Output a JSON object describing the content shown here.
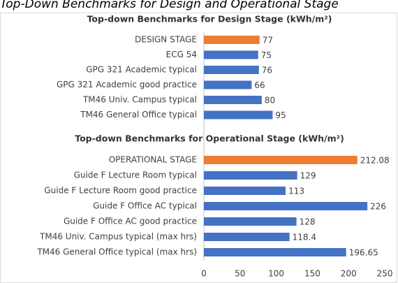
{
  "title": "Top-Down Benchmarks for Design and Operational Stage",
  "chart_data": [
    {
      "type": "barh",
      "title": "Top-down Benchmarks for Design Stage (kWh/m²)",
      "categories": [
        "DESIGN STAGE",
        "ECG 54",
        "GPG 321 Academic typical",
        "GPG 321 Academic good practice",
        "TM46 Univ. Campus typical",
        "TM46 General Office typical"
      ],
      "values": [
        77,
        75,
        76,
        66,
        80,
        95
      ],
      "colors": [
        "#ed7d31",
        "#4472c4",
        "#4472c4",
        "#4472c4",
        "#4472c4",
        "#4472c4"
      ],
      "xlim": [
        0,
        250
      ]
    },
    {
      "type": "barh",
      "title": "Top-down Benchmarks for Operational Stage (kWh/m²)",
      "categories": [
        "OPERATIONAL STAGE",
        "Guide F Lecture Room typical",
        "Guide F Lecture Room good practice",
        "Guide F Office AC typical",
        "Guide F Office AC good practice",
        "TM46 Univ. Campus typical (max hrs)",
        "TM46 General Office typical (max hrs)"
      ],
      "values": [
        212.08,
        129,
        113,
        226,
        128,
        118.4,
        196.65
      ],
      "colors": [
        "#ed7d31",
        "#4472c4",
        "#4472c4",
        "#4472c4",
        "#4472c4",
        "#4472c4",
        "#4472c4"
      ],
      "xlim": [
        0,
        250
      ],
      "xticks": [
        0,
        50,
        100,
        150,
        200,
        250
      ]
    }
  ]
}
